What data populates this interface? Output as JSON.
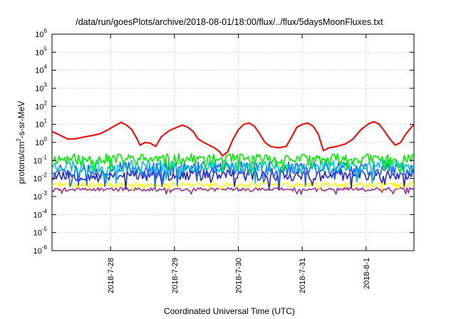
{
  "chart_data": {
    "type": "line",
    "title": "/data/run/goesPlots/archive/2018-08-01/18:00/flux/../flux/5daysMoonFluxes.txt",
    "xlabel": "Coordinated Universal Time (UTC)",
    "ylabel": {
      "base": "protons/cm",
      "exp": "2",
      "rest": "-s-sr-MeV"
    },
    "y_scale": "log",
    "ylim_exponents": [
      -6,
      6
    ],
    "y_ticks": [
      {
        "base": "10",
        "exp": "6"
      },
      {
        "base": "10",
        "exp": "5"
      },
      {
        "base": "10",
        "exp": "4"
      },
      {
        "base": "10",
        "exp": "3"
      },
      {
        "base": "10",
        "exp": "2"
      },
      {
        "base": "10",
        "exp": "1"
      },
      {
        "base": "10",
        "exp": "0"
      },
      {
        "base": "10",
        "exp": "-1"
      },
      {
        "base": "10",
        "exp": "-2"
      },
      {
        "base": "10",
        "exp": "-3"
      },
      {
        "base": "10",
        "exp": "-4"
      },
      {
        "base": "10",
        "exp": "-5"
      },
      {
        "base": "10",
        "exp": "-6"
      }
    ],
    "x_range": [
      "2018-07-27T02:00",
      "2018-08-01T18:00"
    ],
    "x_ticks": [
      {
        "date": "2018-07-28",
        "label": "2018-7-28"
      },
      {
        "date": "2018-07-29",
        "label": "2018-7-29"
      },
      {
        "date": "2018-07-30",
        "label": "2018-7-30"
      },
      {
        "date": "2018-07-31",
        "label": "2018-7-31"
      },
      {
        "date": "2018-08-01",
        "label": "2018-8-1"
      }
    ],
    "grid": true,
    "series": [
      {
        "color": "#ff0000",
        "points": [
          [
            "2018-07-27T02:00",
            4.0
          ],
          [
            "2018-07-27T05:00",
            2.5
          ],
          [
            "2018-07-27T08:00",
            1.5
          ],
          [
            "2018-07-27T11:00",
            1.6
          ],
          [
            "2018-07-27T14:00",
            2.0
          ],
          [
            "2018-07-27T17:00",
            2.4
          ],
          [
            "2018-07-27T20:00",
            3.0
          ],
          [
            "2018-07-27T23:00",
            5.0
          ],
          [
            "2018-07-28T02:00",
            9.0
          ],
          [
            "2018-07-28T04:00",
            13.0
          ],
          [
            "2018-07-28T06:00",
            9.0
          ],
          [
            "2018-07-28T08:00",
            5.0
          ],
          [
            "2018-07-28T10:00",
            1.5
          ],
          [
            "2018-07-28T11:00",
            0.7
          ],
          [
            "2018-07-28T13:00",
            1.0
          ],
          [
            "2018-07-28T15:00",
            0.9
          ],
          [
            "2018-07-28T17:00",
            0.6
          ],
          [
            "2018-07-28T19:00",
            2.0
          ],
          [
            "2018-07-28T22:00",
            4.5
          ],
          [
            "2018-07-29T01:00",
            7.0
          ],
          [
            "2018-07-29T03:00",
            9.0
          ],
          [
            "2018-07-29T05:00",
            7.0
          ],
          [
            "2018-07-29T07:00",
            4.0
          ],
          [
            "2018-07-29T09:00",
            1.5
          ],
          [
            "2018-07-29T11:00",
            1.0
          ],
          [
            "2018-07-29T13:00",
            0.7
          ],
          [
            "2018-07-29T15:00",
            0.5
          ],
          [
            "2018-07-29T17:00",
            0.3
          ],
          [
            "2018-07-29T18:00",
            0.18
          ],
          [
            "2018-07-29T20:00",
            0.3
          ],
          [
            "2018-07-29T22:00",
            1.5
          ],
          [
            "2018-07-30T00:00",
            5.0
          ],
          [
            "2018-07-30T02:00",
            10.0
          ],
          [
            "2018-07-30T04:00",
            12.0
          ],
          [
            "2018-07-30T06:00",
            8.0
          ],
          [
            "2018-07-30T08:00",
            3.0
          ],
          [
            "2018-07-30T10:00",
            1.0
          ],
          [
            "2018-07-30T12:00",
            0.6
          ],
          [
            "2018-07-30T15:00",
            0.5
          ],
          [
            "2018-07-30T18:00",
            0.6
          ],
          [
            "2018-07-30T20:00",
            2.0
          ],
          [
            "2018-07-30T22:00",
            7.0
          ],
          [
            "2018-07-31T00:00",
            10.0
          ],
          [
            "2018-07-31T02:00",
            12.0
          ],
          [
            "2018-07-31T04:00",
            8.0
          ],
          [
            "2018-07-31T06:00",
            3.0
          ],
          [
            "2018-07-31T07:00",
            1.0
          ],
          [
            "2018-07-31T08:00",
            0.35
          ],
          [
            "2018-07-31T10:00",
            0.5
          ],
          [
            "2018-07-31T13:00",
            0.6
          ],
          [
            "2018-07-31T16:00",
            0.8
          ],
          [
            "2018-07-31T19:00",
            1.5
          ],
          [
            "2018-07-31T22:00",
            5.0
          ],
          [
            "2018-08-01T01:00",
            11.0
          ],
          [
            "2018-08-01T03:00",
            14.0
          ],
          [
            "2018-08-01T05:00",
            10.0
          ],
          [
            "2018-08-01T07:00",
            4.0
          ],
          [
            "2018-08-01T09:00",
            1.5
          ],
          [
            "2018-08-01T11:00",
            0.7
          ],
          [
            "2018-08-01T13:00",
            1.0
          ],
          [
            "2018-08-01T15:00",
            3.0
          ],
          [
            "2018-08-01T17:00",
            7.0
          ],
          [
            "2018-08-01T18:00",
            10.0
          ]
        ]
      },
      {
        "color": "#00ee00",
        "base": 0.12,
        "noise": 0.6,
        "seed": 11
      },
      {
        "color": "#00c8c8",
        "base": 0.05,
        "noise": 0.7,
        "seed": 23
      },
      {
        "color": "#2060ff",
        "base": 0.035,
        "noise": 0.8,
        "seed": 37
      },
      {
        "color": "#2828c0",
        "base": 0.015,
        "noise": 0.6,
        "seed": 53
      },
      {
        "color": "#ffff00",
        "base": 0.0045,
        "noise": 0.25,
        "seed": 71
      },
      {
        "color": "#993388",
        "base": 0.0025,
        "noise": 0.2,
        "seed": 89
      }
    ]
  }
}
